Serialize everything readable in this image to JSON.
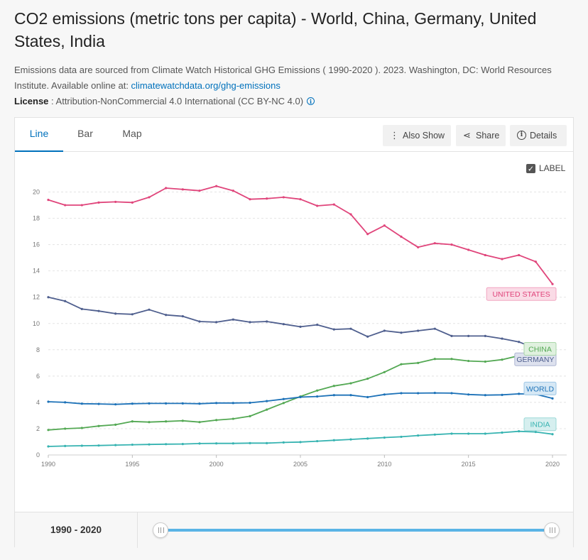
{
  "header": {
    "title": "CO2 emissions (metric tons per capita) - World, China, Germany, United States, India",
    "source_text": "Emissions data are sourced from Climate Watch Historical GHG Emissions ( 1990-2020 ). 2023. Washington, DC: World Resources Institute. Available online at: ",
    "source_link": "climatewatchdata.org/ghg-emissions",
    "license_label": "License",
    "license_text": " : Attribution-NonCommercial 4.0 International (CC BY-NC 4.0)",
    "info_icon_glyph": "i"
  },
  "tabs": [
    "Line",
    "Bar",
    "Map"
  ],
  "toolbar": {
    "also_show": "Also Show",
    "share": "Share",
    "details": "Details",
    "also_show_glyph": "⋮",
    "share_glyph": "⋖",
    "details_glyph": "i"
  },
  "label_toggle": {
    "text": "LABEL",
    "checked": true,
    "check_glyph": "✓"
  },
  "range_slider": {
    "start": "1990",
    "separator": " - ",
    "end": "2020"
  },
  "chart_data": {
    "type": "line",
    "title": "CO2 emissions (metric tons per capita)",
    "x": [
      1990,
      1991,
      1992,
      1993,
      1994,
      1995,
      1996,
      1997,
      1998,
      1999,
      2000,
      2001,
      2002,
      2003,
      2004,
      2005,
      2006,
      2007,
      2008,
      2009,
      2010,
      2011,
      2012,
      2013,
      2014,
      2015,
      2016,
      2017,
      2018,
      2019,
      2020
    ],
    "x_ticks": [
      "1990",
      "1995",
      "2000",
      "2005",
      "2010",
      "2015",
      "2020"
    ],
    "y_ticks": [
      "0",
      "2",
      "4",
      "6",
      "8",
      "10",
      "12",
      "14",
      "16",
      "18",
      "20"
    ],
    "xlim": [
      1990,
      2020
    ],
    "ylim": [
      0,
      21
    ],
    "grid": true,
    "series": [
      {
        "name": "UNITED STATES",
        "color": "#e0457b",
        "label_bg": "#fadbe6",
        "label_border": "#f2a5c1",
        "values": [
          19.4,
          19.0,
          19.0,
          19.2,
          19.25,
          19.2,
          19.6,
          20.3,
          20.2,
          20.1,
          20.45,
          20.1,
          19.45,
          19.5,
          19.6,
          19.45,
          18.95,
          19.05,
          18.3,
          16.8,
          17.45,
          16.6,
          15.8,
          16.1,
          16.0,
          15.6,
          15.2,
          14.9,
          15.2,
          14.7,
          13.0
        ]
      },
      {
        "name": "GERMANY",
        "color": "#4f5f8e",
        "label_bg": "#dde1ee",
        "label_border": "#aeb6d2",
        "values": [
          12.0,
          11.7,
          11.1,
          10.95,
          10.75,
          10.7,
          11.05,
          10.65,
          10.55,
          10.15,
          10.1,
          10.3,
          10.1,
          10.15,
          9.95,
          9.75,
          9.9,
          9.55,
          9.6,
          9.0,
          9.45,
          9.3,
          9.45,
          9.6,
          9.05,
          9.05,
          9.05,
          8.85,
          8.6,
          8.1,
          7.6
        ]
      },
      {
        "name": "CHINA",
        "color": "#53a853",
        "label_bg": "#e0f1df",
        "label_border": "#a9d6a8",
        "values": [
          1.9,
          2.0,
          2.05,
          2.2,
          2.3,
          2.55,
          2.5,
          2.55,
          2.6,
          2.5,
          2.65,
          2.75,
          2.95,
          3.45,
          3.95,
          4.45,
          4.9,
          5.25,
          5.45,
          5.8,
          6.3,
          6.9,
          7.0,
          7.3,
          7.3,
          7.15,
          7.1,
          7.25,
          7.55,
          7.75,
          7.75
        ]
      },
      {
        "name": "WORLD",
        "color": "#1d72b8",
        "label_bg": "#d6e8f5",
        "label_border": "#9ec7e6",
        "values": [
          4.05,
          4.0,
          3.9,
          3.88,
          3.85,
          3.9,
          3.92,
          3.92,
          3.92,
          3.9,
          3.95,
          3.95,
          3.97,
          4.1,
          4.25,
          4.4,
          4.45,
          4.55,
          4.55,
          4.4,
          4.6,
          4.7,
          4.7,
          4.72,
          4.7,
          4.6,
          4.55,
          4.57,
          4.65,
          4.62,
          4.3
        ]
      },
      {
        "name": "INDIA",
        "color": "#36b3b1",
        "label_bg": "#d6efef",
        "label_border": "#9bd8d7",
        "values": [
          0.65,
          0.68,
          0.7,
          0.72,
          0.75,
          0.78,
          0.8,
          0.82,
          0.83,
          0.87,
          0.88,
          0.88,
          0.9,
          0.9,
          0.95,
          0.98,
          1.05,
          1.12,
          1.18,
          1.25,
          1.32,
          1.38,
          1.48,
          1.55,
          1.62,
          1.62,
          1.62,
          1.7,
          1.8,
          1.75,
          1.58
        ]
      }
    ]
  }
}
